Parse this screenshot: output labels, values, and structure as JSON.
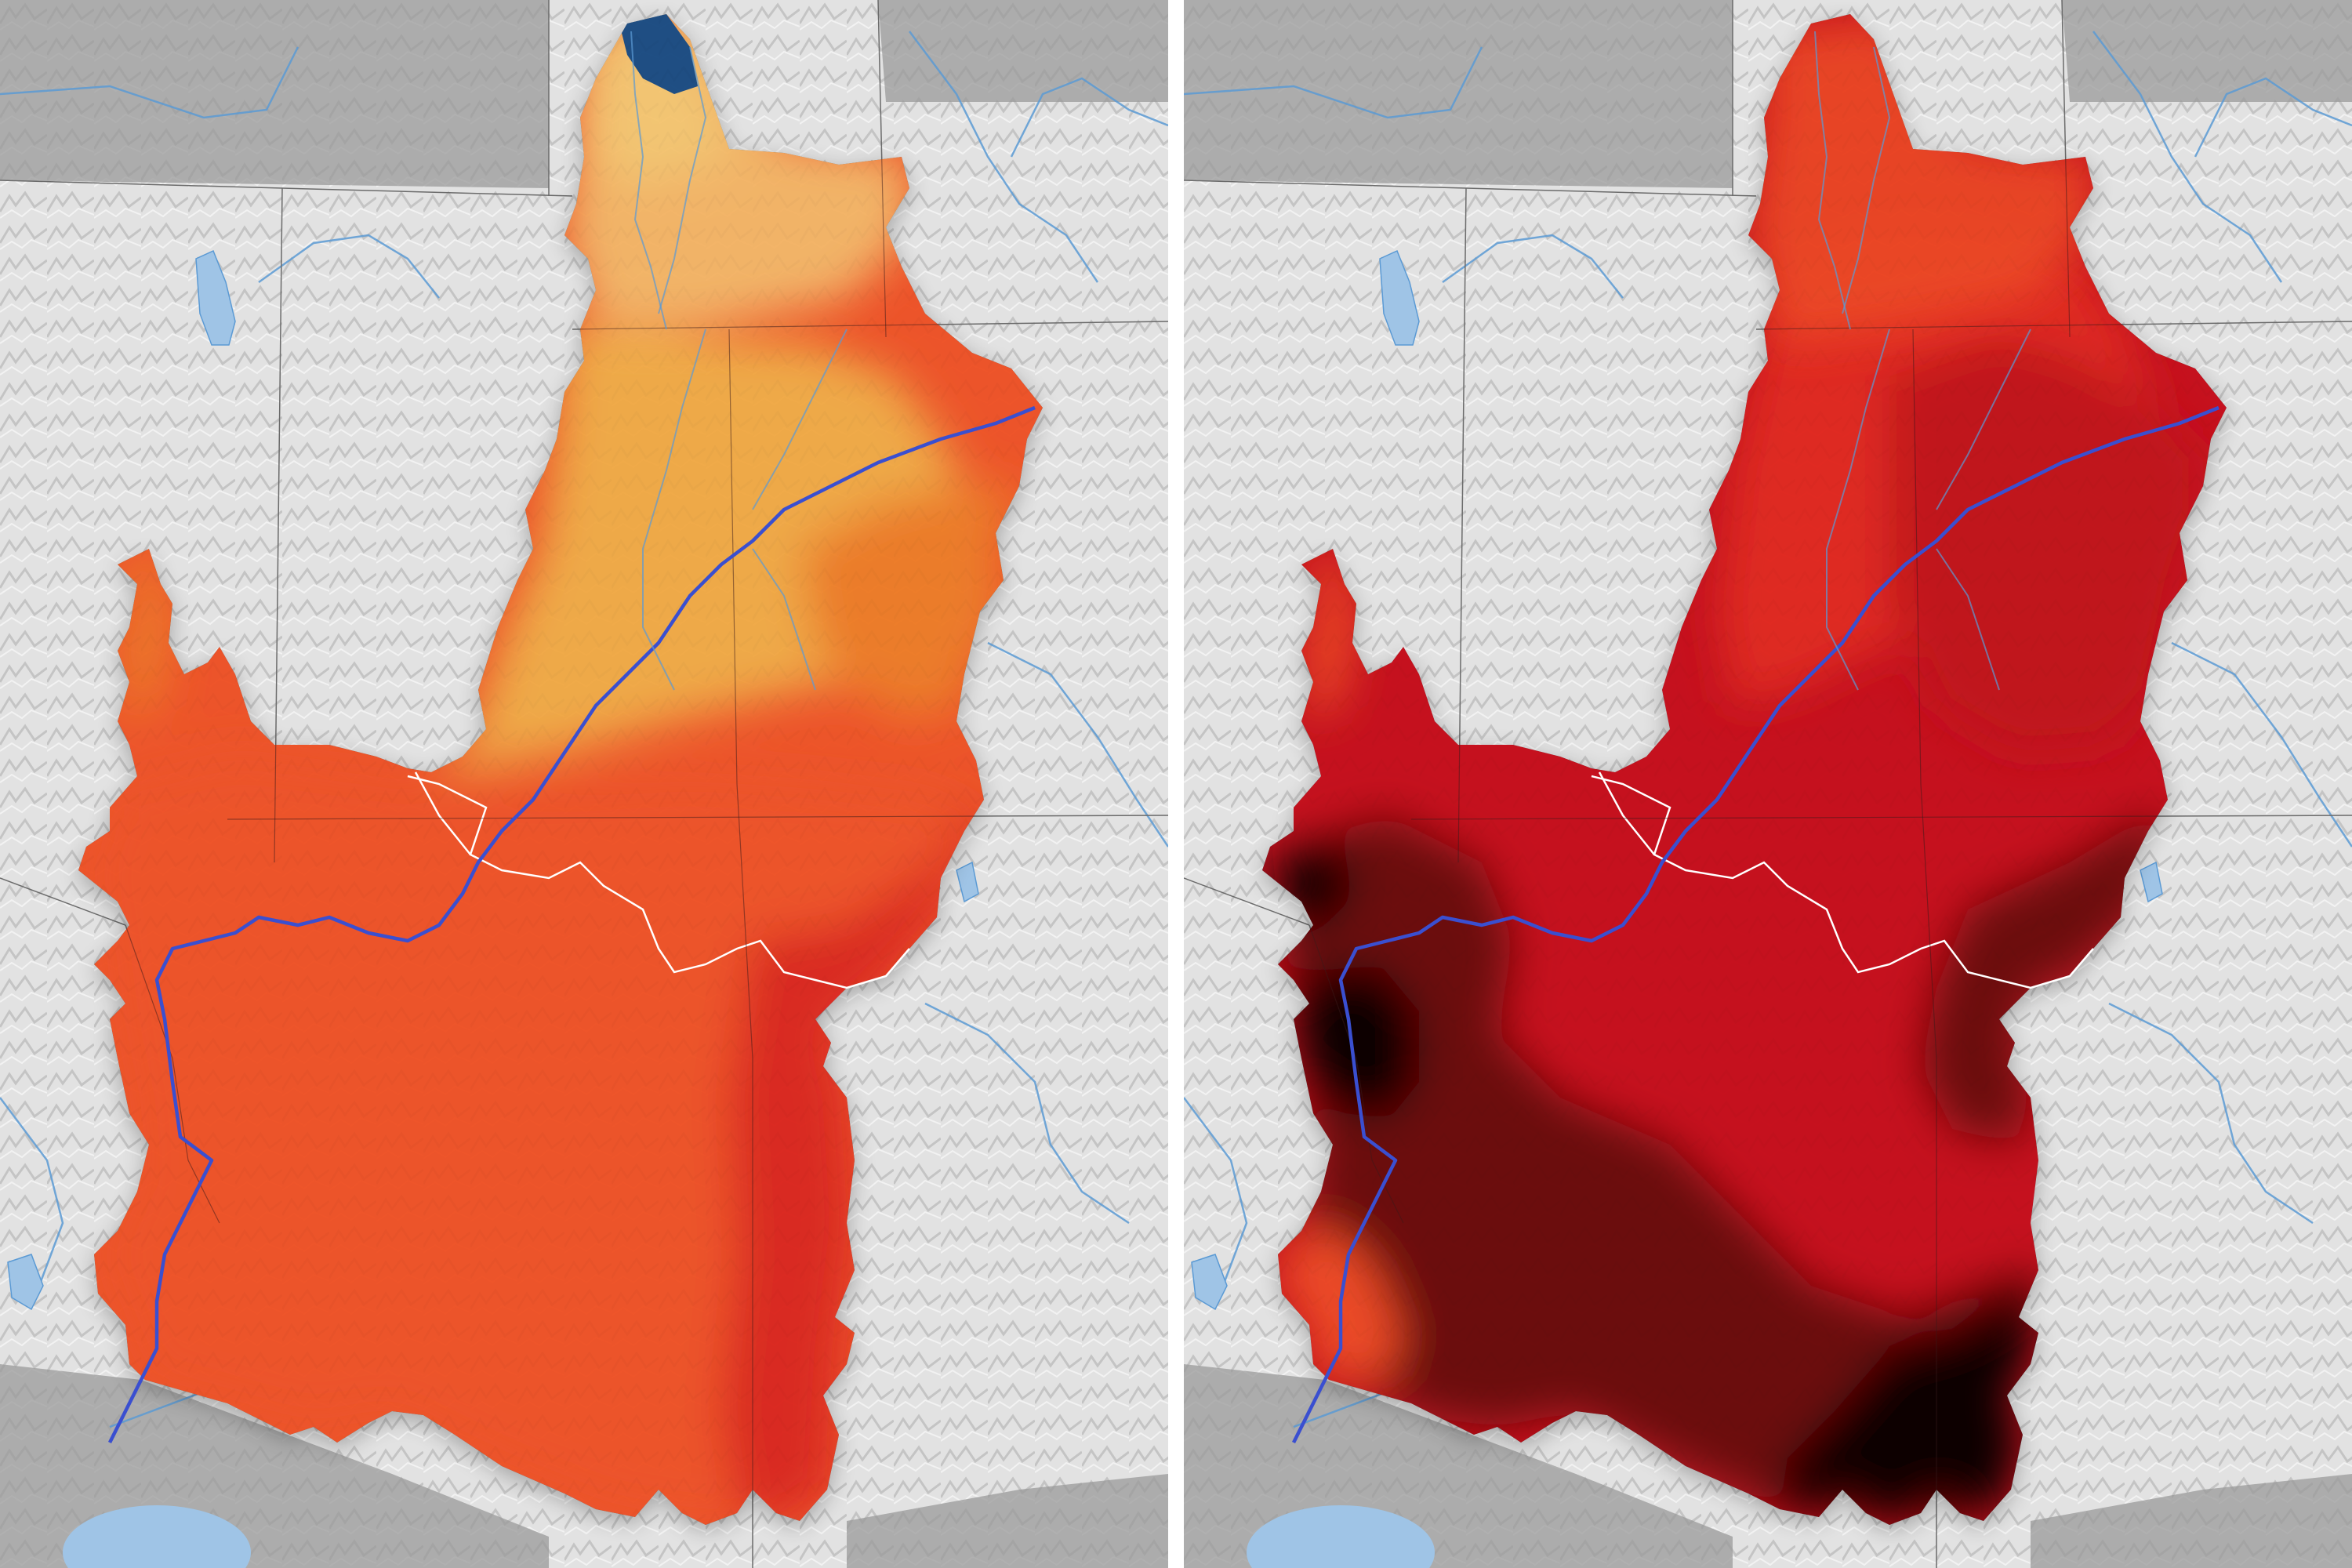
{
  "colors": {
    "land": "#e2e2e2",
    "land_shade": "#bdbdbd",
    "outside_country": "#9a9a9a",
    "water": "#9fc4e6",
    "river_minor": "#5b9ad4",
    "river_main": "#3a4fd0",
    "state_border": "#6b6b6b",
    "basin_boundary": "#ffffff"
  },
  "map_left": {
    "palette": "warm",
    "zones": [
      {
        "name": "north-tip",
        "color": "#1f4f85"
      },
      {
        "name": "upper-basin-north",
        "color": "#f6c874"
      },
      {
        "name": "upper-basin-middle",
        "color": "#f2ac4a"
      },
      {
        "name": "upper-basin-east",
        "color": "#ef7e2c"
      },
      {
        "name": "lower-basin",
        "color": "#f0552a"
      },
      {
        "name": "lower-basin-east",
        "color": "#dd2a22"
      }
    ]
  },
  "map_right": {
    "palette": "hot",
    "zones": [
      {
        "name": "upper-basin-north",
        "color": "#ef4c28"
      },
      {
        "name": "upper-basin-middle",
        "color": "#e22a24"
      },
      {
        "name": "upper-basin-east",
        "color": "#c3121e"
      },
      {
        "name": "lower-basin",
        "color": "#c8111e"
      },
      {
        "name": "lower-basin-dark",
        "color": "#6d0810"
      },
      {
        "name": "lower-basin-black",
        "color": "#0b0203"
      }
    ]
  }
}
